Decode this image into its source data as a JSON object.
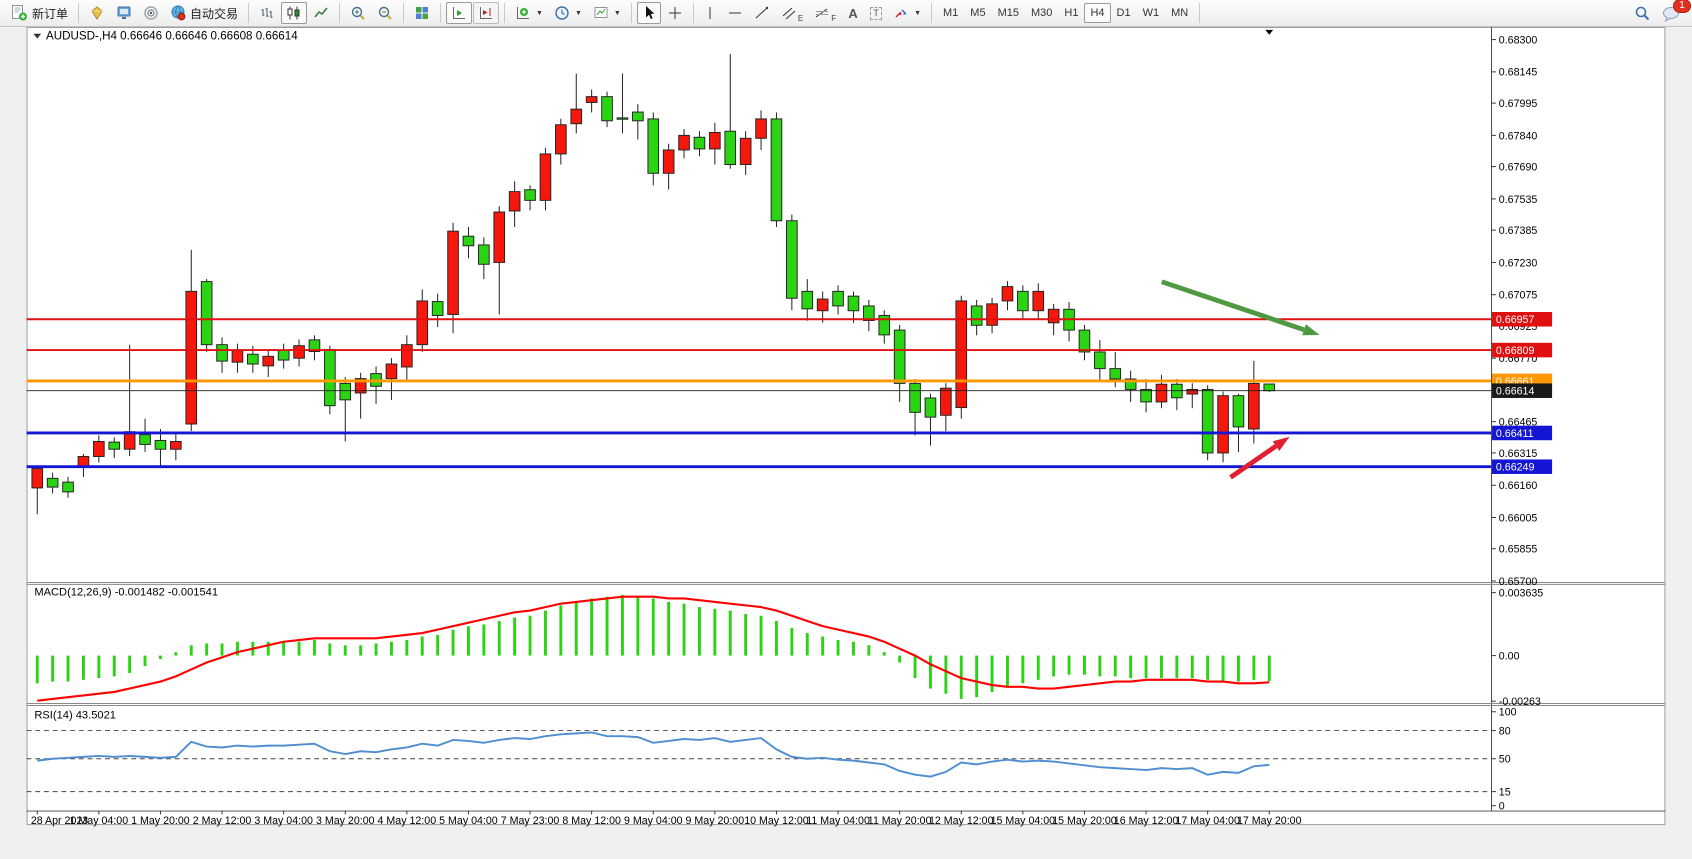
{
  "toolbar": {
    "new_order_label": "新订单",
    "auto_trading_label": "自动交易",
    "text_tool_label": "A",
    "text_box_tool_label": "T",
    "channel_tool_label": "E",
    "fibo_tool_label": "F",
    "timeframes": [
      "M1",
      "M5",
      "M15",
      "M30",
      "H1",
      "H4",
      "D1",
      "W1",
      "MN"
    ],
    "active_timeframe": "H4",
    "notification_badge": "1"
  },
  "chart": {
    "symbol_line": "AUDUSD-,H4  0.66646 0.66646 0.66608 0.66614",
    "symbol": "AUDUSD-",
    "timeframe": "H4"
  },
  "price_axis": {
    "ticks": [
      "0.68300",
      "0.68145",
      "0.67995",
      "0.67840",
      "0.67690",
      "0.67535",
      "0.67385",
      "0.67230",
      "0.67075",
      "0.66925",
      "0.66770",
      "0.66465",
      "0.66315",
      "0.66160",
      "0.66005",
      "0.65855",
      "0.65700"
    ]
  },
  "indicator_macd": {
    "label": "MACD(12,26,9) -0.001482 -0.001541",
    "axis_ticks": [
      "0.003635",
      "0.00",
      "-0.00263"
    ]
  },
  "indicator_rsi": {
    "label": "RSI(14) 43.5021",
    "axis_ticks": [
      "100",
      "80",
      "50",
      "15",
      "0"
    ]
  },
  "time_axis": {
    "labels": [
      "28 Apr 2023",
      "1 May 04:00",
      "1 May 20:00",
      "2 May 12:00",
      "3 May 04:00",
      "3 May 20:00",
      "4 May 12:00",
      "5 May 04:00",
      "7 May 23:00",
      "8 May 12:00",
      "9 May 04:00",
      "9 May 20:00",
      "10 May 12:00",
      "11 May 04:00",
      "11 May 20:00",
      "12 May 12:00",
      "15 May 04:00",
      "15 May 20:00",
      "16 May 12:00",
      "17 May 04:00",
      "17 May 20:00"
    ]
  },
  "chart_data": {
    "type": "candlestick",
    "symbol": "AUDUSD",
    "timeframe": "H4",
    "title": "AUDUSD-,H4",
    "current_ohlc": {
      "open": 0.66646,
      "high": 0.66646,
      "low": 0.66608,
      "close": 0.66614
    },
    "price_range": [
      0.657,
      0.683
    ],
    "bull_color": "#f7180d",
    "bear_color": "#2bd413",
    "wick_color": "#1a1a1a",
    "label_every_n_candles": 4,
    "candles": [
      [
        0.66147,
        0.66245,
        0.66021,
        0.6624
      ],
      [
        0.66193,
        0.6622,
        0.6612,
        0.66151
      ],
      [
        0.66175,
        0.662,
        0.661,
        0.66128
      ],
      [
        0.66251,
        0.6631,
        0.662,
        0.66298
      ],
      [
        0.66298,
        0.664,
        0.6627,
        0.6637
      ],
      [
        0.66367,
        0.6639,
        0.6629,
        0.66333
      ],
      [
        0.66333,
        0.66835,
        0.663,
        0.66417
      ],
      [
        0.66403,
        0.6648,
        0.6632,
        0.66356
      ],
      [
        0.66375,
        0.6643,
        0.6625,
        0.66333
      ],
      [
        0.66333,
        0.6641,
        0.6628,
        0.6637
      ],
      [
        0.66454,
        0.6729,
        0.6642,
        0.67091
      ],
      [
        0.67138,
        0.6715,
        0.668,
        0.66835
      ],
      [
        0.66835,
        0.6687,
        0.667,
        0.66756
      ],
      [
        0.66751,
        0.6684,
        0.667,
        0.66807
      ],
      [
        0.66789,
        0.6683,
        0.667,
        0.66742
      ],
      [
        0.66733,
        0.6681,
        0.6668,
        0.66779
      ],
      [
        0.66807,
        0.6684,
        0.6672,
        0.66761
      ],
      [
        0.6677,
        0.6686,
        0.6673,
        0.6683
      ],
      [
        0.66858,
        0.6688,
        0.6676,
        0.66802
      ],
      [
        0.66812,
        0.6683,
        0.665,
        0.66542
      ],
      [
        0.66649,
        0.6668,
        0.6637,
        0.6657
      ],
      [
        0.66603,
        0.667,
        0.6648,
        0.66672
      ],
      [
        0.66696,
        0.6673,
        0.6655,
        0.66635
      ],
      [
        0.66672,
        0.6677,
        0.6657,
        0.66742
      ],
      [
        0.66728,
        0.6688,
        0.6666,
        0.66835
      ],
      [
        0.66835,
        0.671,
        0.668,
        0.67045
      ],
      [
        0.67042,
        0.6708,
        0.6692,
        0.66975
      ],
      [
        0.6698,
        0.6742,
        0.6689,
        0.6738
      ],
      [
        0.67356,
        0.674,
        0.6725,
        0.6731
      ],
      [
        0.67314,
        0.6735,
        0.6715,
        0.67221
      ],
      [
        0.6723,
        0.675,
        0.6698,
        0.67472
      ],
      [
        0.67477,
        0.6762,
        0.674,
        0.6757
      ],
      [
        0.67579,
        0.676,
        0.6748,
        0.67528
      ],
      [
        0.67528,
        0.6778,
        0.6748,
        0.67751
      ],
      [
        0.67751,
        0.6792,
        0.677,
        0.67891
      ],
      [
        0.67896,
        0.68137,
        0.6785,
        0.67966
      ],
      [
        0.67998,
        0.6806,
        0.6795,
        0.68026
      ],
      [
        0.68026,
        0.6805,
        0.6788,
        0.6791
      ],
      [
        0.67924,
        0.68137,
        0.6785,
        0.67919
      ],
      [
        0.67952,
        0.6799,
        0.6782,
        0.6791
      ],
      [
        0.67919,
        0.6795,
        0.676,
        0.67658
      ],
      [
        0.67658,
        0.678,
        0.6758,
        0.6777
      ],
      [
        0.6777,
        0.6787,
        0.6773,
        0.6784
      ],
      [
        0.67831,
        0.6786,
        0.6774,
        0.67775
      ],
      [
        0.67775,
        0.679,
        0.677,
        0.67854
      ],
      [
        0.6786,
        0.68231,
        0.6768,
        0.677
      ],
      [
        0.677,
        0.6786,
        0.6765,
        0.67826
      ],
      [
        0.67826,
        0.6796,
        0.6777,
        0.67919
      ],
      [
        0.67919,
        0.6795,
        0.674,
        0.6743
      ],
      [
        0.6743,
        0.6746,
        0.67,
        0.67058
      ],
      [
        0.67091,
        0.6715,
        0.6695,
        0.67007
      ],
      [
        0.66998,
        0.6709,
        0.6694,
        0.67054
      ],
      [
        0.67091,
        0.6712,
        0.6698,
        0.67021
      ],
      [
        0.67068,
        0.6709,
        0.6694,
        0.66998
      ],
      [
        0.67021,
        0.6705,
        0.669,
        0.66951
      ],
      [
        0.66975,
        0.67,
        0.6684,
        0.66882
      ],
      [
        0.66905,
        0.6693,
        0.6656,
        0.66649
      ],
      [
        0.66649,
        0.6667,
        0.664,
        0.6651
      ],
      [
        0.66579,
        0.666,
        0.6635,
        0.66487
      ],
      [
        0.66496,
        0.6665,
        0.6642,
        0.66626
      ],
      [
        0.66533,
        0.6707,
        0.6648,
        0.67045
      ],
      [
        0.67021,
        0.6705,
        0.6688,
        0.66928
      ],
      [
        0.66928,
        0.6706,
        0.6689,
        0.67031
      ],
      [
        0.67045,
        0.6714,
        0.67,
        0.67114
      ],
      [
        0.67091,
        0.6712,
        0.6696,
        0.66998
      ],
      [
        0.66998,
        0.6713,
        0.6696,
        0.67091
      ],
      [
        0.6694,
        0.6703,
        0.6688,
        0.67005
      ],
      [
        0.67005,
        0.6704,
        0.6685,
        0.66905
      ],
      [
        0.66905,
        0.6693,
        0.6676,
        0.668
      ],
      [
        0.668,
        0.66858,
        0.6666,
        0.6672
      ],
      [
        0.6672,
        0.668,
        0.6663,
        0.6667
      ],
      [
        0.6667,
        0.6671,
        0.6656,
        0.6662
      ],
      [
        0.6662,
        0.6667,
        0.6651,
        0.6656
      ],
      [
        0.6656,
        0.6669,
        0.6653,
        0.66645
      ],
      [
        0.66645,
        0.6667,
        0.6652,
        0.6658
      ],
      [
        0.66598,
        0.6665,
        0.6653,
        0.6662
      ],
      [
        0.6662,
        0.6664,
        0.6628,
        0.66315
      ],
      [
        0.66315,
        0.6661,
        0.6627,
        0.6659
      ],
      [
        0.6659,
        0.666,
        0.6632,
        0.6644
      ],
      [
        0.6643,
        0.66757,
        0.6636,
        0.66649
      ],
      [
        0.66646,
        0.66646,
        0.66608,
        0.66614
      ]
    ],
    "macd": {
      "params": "12,26,9",
      "main_current": -0.001482,
      "signal_current": -0.001541,
      "range": [
        -0.00263,
        0.003635
      ],
      "histogram_color": "#2bd413",
      "signal_color": "#ff0000",
      "histogram": [
        -0.0016,
        -0.0015,
        -0.0015,
        -0.0014,
        -0.0013,
        -0.0012,
        -0.001,
        -0.0006,
        -0.0002,
        0.0002,
        0.0006,
        0.0007,
        0.0007,
        0.0008,
        0.0008,
        0.0008,
        0.0008,
        0.0008,
        0.0009,
        0.0007,
        0.0006,
        0.0006,
        0.0007,
        0.0008,
        0.0009,
        0.0011,
        0.0012,
        0.0015,
        0.0017,
        0.0018,
        0.002,
        0.0022,
        0.0023,
        0.0026,
        0.0029,
        0.0031,
        0.0033,
        0.0034,
        0.0035,
        0.0034,
        0.0033,
        0.0031,
        0.003,
        0.0028,
        0.0027,
        0.0026,
        0.0024,
        0.0023,
        0.002,
        0.0016,
        0.0013,
        0.0011,
        0.0009,
        0.0008,
        0.0006,
        0.0002,
        -0.0004,
        -0.0013,
        -0.0019,
        -0.0022,
        -0.0025,
        -0.0024,
        -0.0021,
        -0.0018,
        -0.0016,
        -0.0014,
        -0.0012,
        -0.0011,
        -0.0011,
        -0.0012,
        -0.0012,
        -0.0013,
        -0.0013,
        -0.0013,
        -0.0013,
        -0.0013,
        -0.0014,
        -0.0015,
        -0.0015,
        -0.0014,
        -0.001482
      ],
      "signal": [
        -0.0026,
        -0.0025,
        -0.0024,
        -0.0023,
        -0.0022,
        -0.0021,
        -0.0019,
        -0.0017,
        -0.0015,
        -0.0012,
        -0.0008,
        -0.0004,
        -0.0001,
        0.0002,
        0.0004,
        0.0006,
        0.0008,
        0.0009,
        0.001,
        0.001,
        0.001,
        0.001,
        0.001,
        0.0011,
        0.0012,
        0.0013,
        0.0015,
        0.0017,
        0.0019,
        0.0021,
        0.0023,
        0.0025,
        0.0026,
        0.0028,
        0.003,
        0.0031,
        0.0032,
        0.0033,
        0.0034,
        0.0034,
        0.0034,
        0.0033,
        0.0033,
        0.0032,
        0.0031,
        0.003,
        0.0029,
        0.0028,
        0.0026,
        0.0023,
        0.002,
        0.0017,
        0.0015,
        0.0013,
        0.0011,
        0.0008,
        0.0004,
        0.0,
        -0.0005,
        -0.0009,
        -0.0013,
        -0.0015,
        -0.0017,
        -0.0018,
        -0.0018,
        -0.0019,
        -0.0019,
        -0.0018,
        -0.0017,
        -0.0016,
        -0.0015,
        -0.0015,
        -0.0014,
        -0.0014,
        -0.0014,
        -0.0014,
        -0.0015,
        -0.0015,
        -0.0016,
        -0.0016,
        -0.001541
      ]
    },
    "rsi": {
      "period": 14,
      "current": 43.5021,
      "range": [
        0,
        100
      ],
      "levels": [
        80,
        50,
        15
      ],
      "line_color": "#4f8fd0",
      "values": [
        48,
        50,
        51,
        52,
        53,
        52,
        53,
        52,
        51,
        52,
        68,
        63,
        62,
        64,
        63,
        64,
        64,
        65,
        66,
        58,
        55,
        58,
        57,
        60,
        62,
        66,
        64,
        70,
        69,
        67,
        70,
        72,
        71,
        74,
        76,
        77,
        78,
        74,
        74,
        73,
        67,
        69,
        71,
        70,
        72,
        68,
        70,
        72,
        60,
        52,
        50,
        51,
        49,
        48,
        46,
        44,
        37,
        33,
        31,
        36,
        46,
        44,
        47,
        49,
        47,
        48,
        47,
        45,
        43,
        41,
        40,
        39,
        38,
        40,
        39,
        40,
        33,
        36,
        35,
        42,
        43.5
      ]
    },
    "hlines": [
      {
        "price": 0.66957,
        "color": "#e01010",
        "width": 2
      },
      {
        "price": 0.66809,
        "color": "#e01010",
        "width": 2
      },
      {
        "price": 0.66661,
        "color": "#ff9800",
        "width": 3
      },
      {
        "price": 0.66411,
        "color": "#1515d6",
        "width": 3
      },
      {
        "price": 0.66249,
        "color": "#1515d6",
        "width": 3
      }
    ],
    "current_price": {
      "price": 0.66614,
      "color": "#1a1a1a"
    },
    "arrows": [
      {
        "name": "downtrend-arrow",
        "color": "#4e9a40",
        "from": [
          1172,
          290
        ],
        "to": [
          1335,
          345
        ],
        "width": 5
      },
      {
        "name": "bounce-arrow",
        "color": "#e02030",
        "from": [
          1243,
          492
        ],
        "to": [
          1304,
          450
        ],
        "width": 5
      }
    ]
  }
}
